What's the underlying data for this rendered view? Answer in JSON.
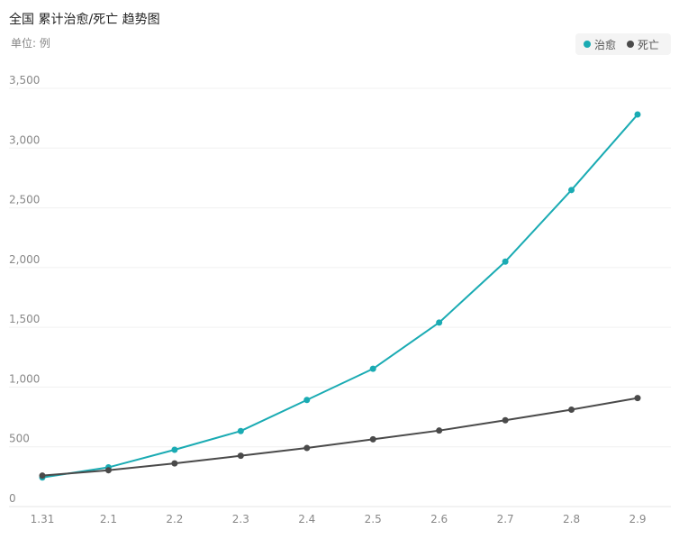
{
  "header": {
    "title": "全国 累计治愈/死亡 趋势图",
    "unit": "单位: 例"
  },
  "chart_data": {
    "type": "line",
    "categories": [
      "1.31",
      "2.1",
      "2.2",
      "2.3",
      "2.4",
      "2.5",
      "2.6",
      "2.7",
      "2.8",
      "2.9"
    ],
    "series": [
      {
        "name": "治愈",
        "color": "#1aabb3",
        "values": [
          243,
          328,
          475,
          632,
          892,
          1153,
          1540,
          2050,
          2649,
          3281
        ]
      },
      {
        "name": "死亡",
        "color": "#4a4a4a",
        "values": [
          259,
          304,
          361,
          425,
          490,
          563,
          636,
          722,
          811,
          908
        ]
      }
    ],
    "ylim": [
      0,
      3500
    ],
    "yticks": [
      0,
      500,
      1000,
      1500,
      2000,
      2500,
      3000,
      3500
    ],
    "ytick_labels": [
      "0",
      "500",
      "1,000",
      "1,500",
      "2,000",
      "2,500",
      "3,000",
      "3,500"
    ],
    "legend_position": "top-right",
    "grid": true
  }
}
